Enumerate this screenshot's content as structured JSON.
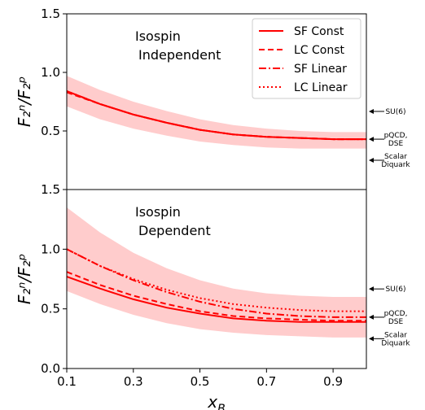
{
  "colors": {
    "line": "#ff0000",
    "band": "#ffcccc",
    "axes": "#000000"
  },
  "chart_data": [
    {
      "type": "line",
      "panel": "top",
      "annotation": [
        "Isospin",
        "Independent"
      ],
      "ylabel": "F₂ⁿ/F₂ᵖ",
      "xlim": [
        0.1,
        1.0
      ],
      "ylim": [
        0.0,
        1.5
      ],
      "yticks": [
        "0.5",
        "1.0",
        "1.5"
      ],
      "legend": {
        "placement": "top-right"
      },
      "x": [
        0.1,
        0.2,
        0.3,
        0.4,
        0.5,
        0.6,
        0.7,
        0.8,
        0.9,
        1.0
      ],
      "band": {
        "lower": [
          0.71,
          0.6,
          0.52,
          0.46,
          0.41,
          0.38,
          0.36,
          0.35,
          0.35,
          0.35
        ],
        "upper": [
          0.97,
          0.85,
          0.75,
          0.67,
          0.6,
          0.55,
          0.52,
          0.5,
          0.49,
          0.49
        ]
      },
      "series": [
        {
          "name": "SF Const",
          "style": "solid",
          "values": [
            0.84,
            0.73,
            0.64,
            0.57,
            0.51,
            0.47,
            0.45,
            0.44,
            0.43,
            0.43
          ]
        },
        {
          "name": "LC Const",
          "style": "dashed",
          "values": [
            0.83,
            0.73,
            0.64,
            0.57,
            0.51,
            0.47,
            0.45,
            0.44,
            0.43,
            0.43
          ]
        },
        {
          "name": "SF Linear",
          "style": "dashdot",
          "values": [
            0.84,
            0.73,
            0.64,
            0.57,
            0.51,
            0.47,
            0.45,
            0.44,
            0.43,
            0.43
          ]
        },
        {
          "name": "LC Linear",
          "style": "dotted",
          "values": [
            0.84,
            0.73,
            0.64,
            0.57,
            0.51,
            0.47,
            0.45,
            0.44,
            0.43,
            0.43
          ]
        }
      ],
      "references": [
        {
          "label": [
            "SU(6)"
          ],
          "y": 0.667
        },
        {
          "label": [
            "pQCD,",
            "DSE"
          ],
          "y": 0.43
        },
        {
          "label": [
            "Scalar",
            "Diquark"
          ],
          "y": 0.25
        }
      ]
    },
    {
      "type": "line",
      "panel": "bottom",
      "annotation": [
        "Isospin",
        "Dependent"
      ],
      "xlabel": "x",
      "xlabel_sub": "B",
      "ylabel": "F₂ⁿ/F₂ᵖ",
      "xlim": [
        0.1,
        1.0
      ],
      "ylim": [
        0.0,
        1.5
      ],
      "xticks": [
        "0.1",
        "0.3",
        "0.5",
        "0.7",
        "0.9"
      ],
      "yticks": [
        "0.0",
        "0.5",
        "1.0",
        "1.5"
      ],
      "x": [
        0.1,
        0.2,
        0.3,
        0.4,
        0.5,
        0.6,
        0.7,
        0.8,
        0.9,
        1.0
      ],
      "band": {
        "lower": [
          0.65,
          0.54,
          0.45,
          0.38,
          0.33,
          0.3,
          0.28,
          0.27,
          0.26,
          0.26
        ],
        "upper": [
          1.35,
          1.14,
          0.97,
          0.84,
          0.74,
          0.67,
          0.63,
          0.61,
          0.6,
          0.6
        ]
      },
      "series": [
        {
          "name": "SF Const",
          "style": "solid",
          "values": [
            0.77,
            0.67,
            0.58,
            0.51,
            0.46,
            0.42,
            0.4,
            0.39,
            0.39,
            0.39
          ]
        },
        {
          "name": "LC Const",
          "style": "dashed",
          "values": [
            0.81,
            0.7,
            0.61,
            0.54,
            0.48,
            0.44,
            0.42,
            0.41,
            0.4,
            0.4
          ]
        },
        {
          "name": "SF Linear",
          "style": "dashdot",
          "values": [
            1.0,
            0.86,
            0.74,
            0.64,
            0.56,
            0.5,
            0.46,
            0.44,
            0.43,
            0.43
          ]
        },
        {
          "name": "LC Linear",
          "style": "dotted",
          "values": [
            1.0,
            0.86,
            0.75,
            0.66,
            0.59,
            0.54,
            0.51,
            0.49,
            0.48,
            0.48
          ]
        }
      ],
      "references": [
        {
          "label": [
            "SU(6)"
          ],
          "y": 0.667
        },
        {
          "label": [
            "pQCD,",
            "DSE"
          ],
          "y": 0.43
        },
        {
          "label": [
            "Scalar",
            "Diquark"
          ],
          "y": 0.25
        }
      ]
    }
  ]
}
